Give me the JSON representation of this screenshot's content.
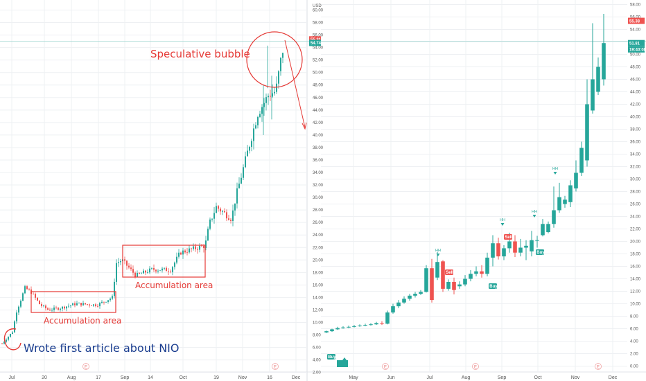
{
  "colors": {
    "up": "#26a69a",
    "down": "#ef5350",
    "annotation": "#e53935",
    "blue_text": "#1a3d8f",
    "grid": "#eef0f3"
  },
  "chart_data": [
    {
      "type": "candlestick",
      "panel": "left",
      "currency": "USD",
      "ylim": [
        0,
        60
      ],
      "y_ticks": [
        "60.00",
        "58.00",
        "56.00",
        "54.00",
        "52.00",
        "50.00",
        "48.00",
        "46.00",
        "44.00",
        "42.00",
        "40.00",
        "38.00",
        "36.00",
        "34.00",
        "32.00",
        "30.00",
        "28.00",
        "26.00",
        "24.00",
        "22.00",
        "20.00",
        "18.00",
        "16.00",
        "14.00",
        "12.00",
        "10.00",
        "8.00",
        "6.00",
        "4.00",
        "2.00"
      ],
      "x_ticks": [
        "Jul",
        "20",
        "Aug",
        "17",
        "Sep",
        "14",
        "Oct",
        "19",
        "Nov",
        "16",
        "Dec"
      ],
      "price_labels": [
        {
          "text": "55.31",
          "value": 55.31,
          "color": "#ef5350"
        },
        {
          "text": "54.74",
          "value": 54.74,
          "color": "#26a69a"
        }
      ],
      "annotations": {
        "bubble": "Speculative bubble",
        "accum1": "Accumulation area",
        "accum2": "Accumulation area",
        "first_article": "Wrote first article about NIO"
      },
      "events": [
        "E",
        "E"
      ]
    },
    {
      "type": "candlestick",
      "panel": "right",
      "ylim": [
        0,
        58
      ],
      "y_ticks": [
        "58.00",
        "56.00",
        "54.00",
        "52.00",
        "50.00",
        "48.00",
        "46.00",
        "44.00",
        "42.00",
        "40.00",
        "38.00",
        "36.00",
        "34.00",
        "32.00",
        "30.00",
        "28.00",
        "26.00",
        "24.00",
        "22.00",
        "20.00",
        "18.00",
        "16.00",
        "14.00",
        "12.00",
        "10.00",
        "8.00",
        "6.00",
        "4.00",
        "2.00",
        "0.00"
      ],
      "x_ticks": [
        "May",
        "Jun",
        "Jul",
        "Aug",
        "Sep",
        "Oct",
        "Nov",
        "Dec"
      ],
      "price_labels": [
        {
          "text": "55.38",
          "value": 55.38,
          "color": "#ef5350"
        },
        {
          "text": "51.81",
          "value": 51.81,
          "color": "#26a69a"
        },
        {
          "text": "19:40:08",
          "value": 50.8,
          "color": "#26a69a"
        }
      ],
      "signals": {
        "buy": "Buy",
        "sell": "Sell",
        "hh": "HH"
      },
      "events": [
        "E",
        "E",
        "E"
      ]
    }
  ]
}
